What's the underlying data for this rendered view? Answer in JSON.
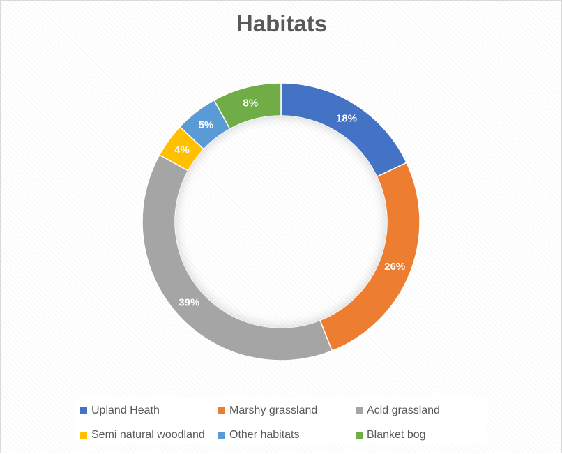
{
  "chart_data": {
    "type": "pie",
    "variant": "donut",
    "title": "Habitats",
    "categories": [
      "Upland Heath",
      "Marshy grassland",
      "Acid grassland",
      "Semi natural woodland",
      "Other habitats",
      "Blanket bog"
    ],
    "values": [
      18,
      26,
      39,
      4,
      5,
      8
    ],
    "data_labels": [
      "18%",
      "26%",
      "39%",
      "4%",
      "5%",
      "8%"
    ],
    "colors": [
      "#4472c4",
      "#ed7d31",
      "#a5a5a5",
      "#ffc000",
      "#5b9bd5",
      "#70ad47"
    ],
    "legend_position": "bottom"
  }
}
